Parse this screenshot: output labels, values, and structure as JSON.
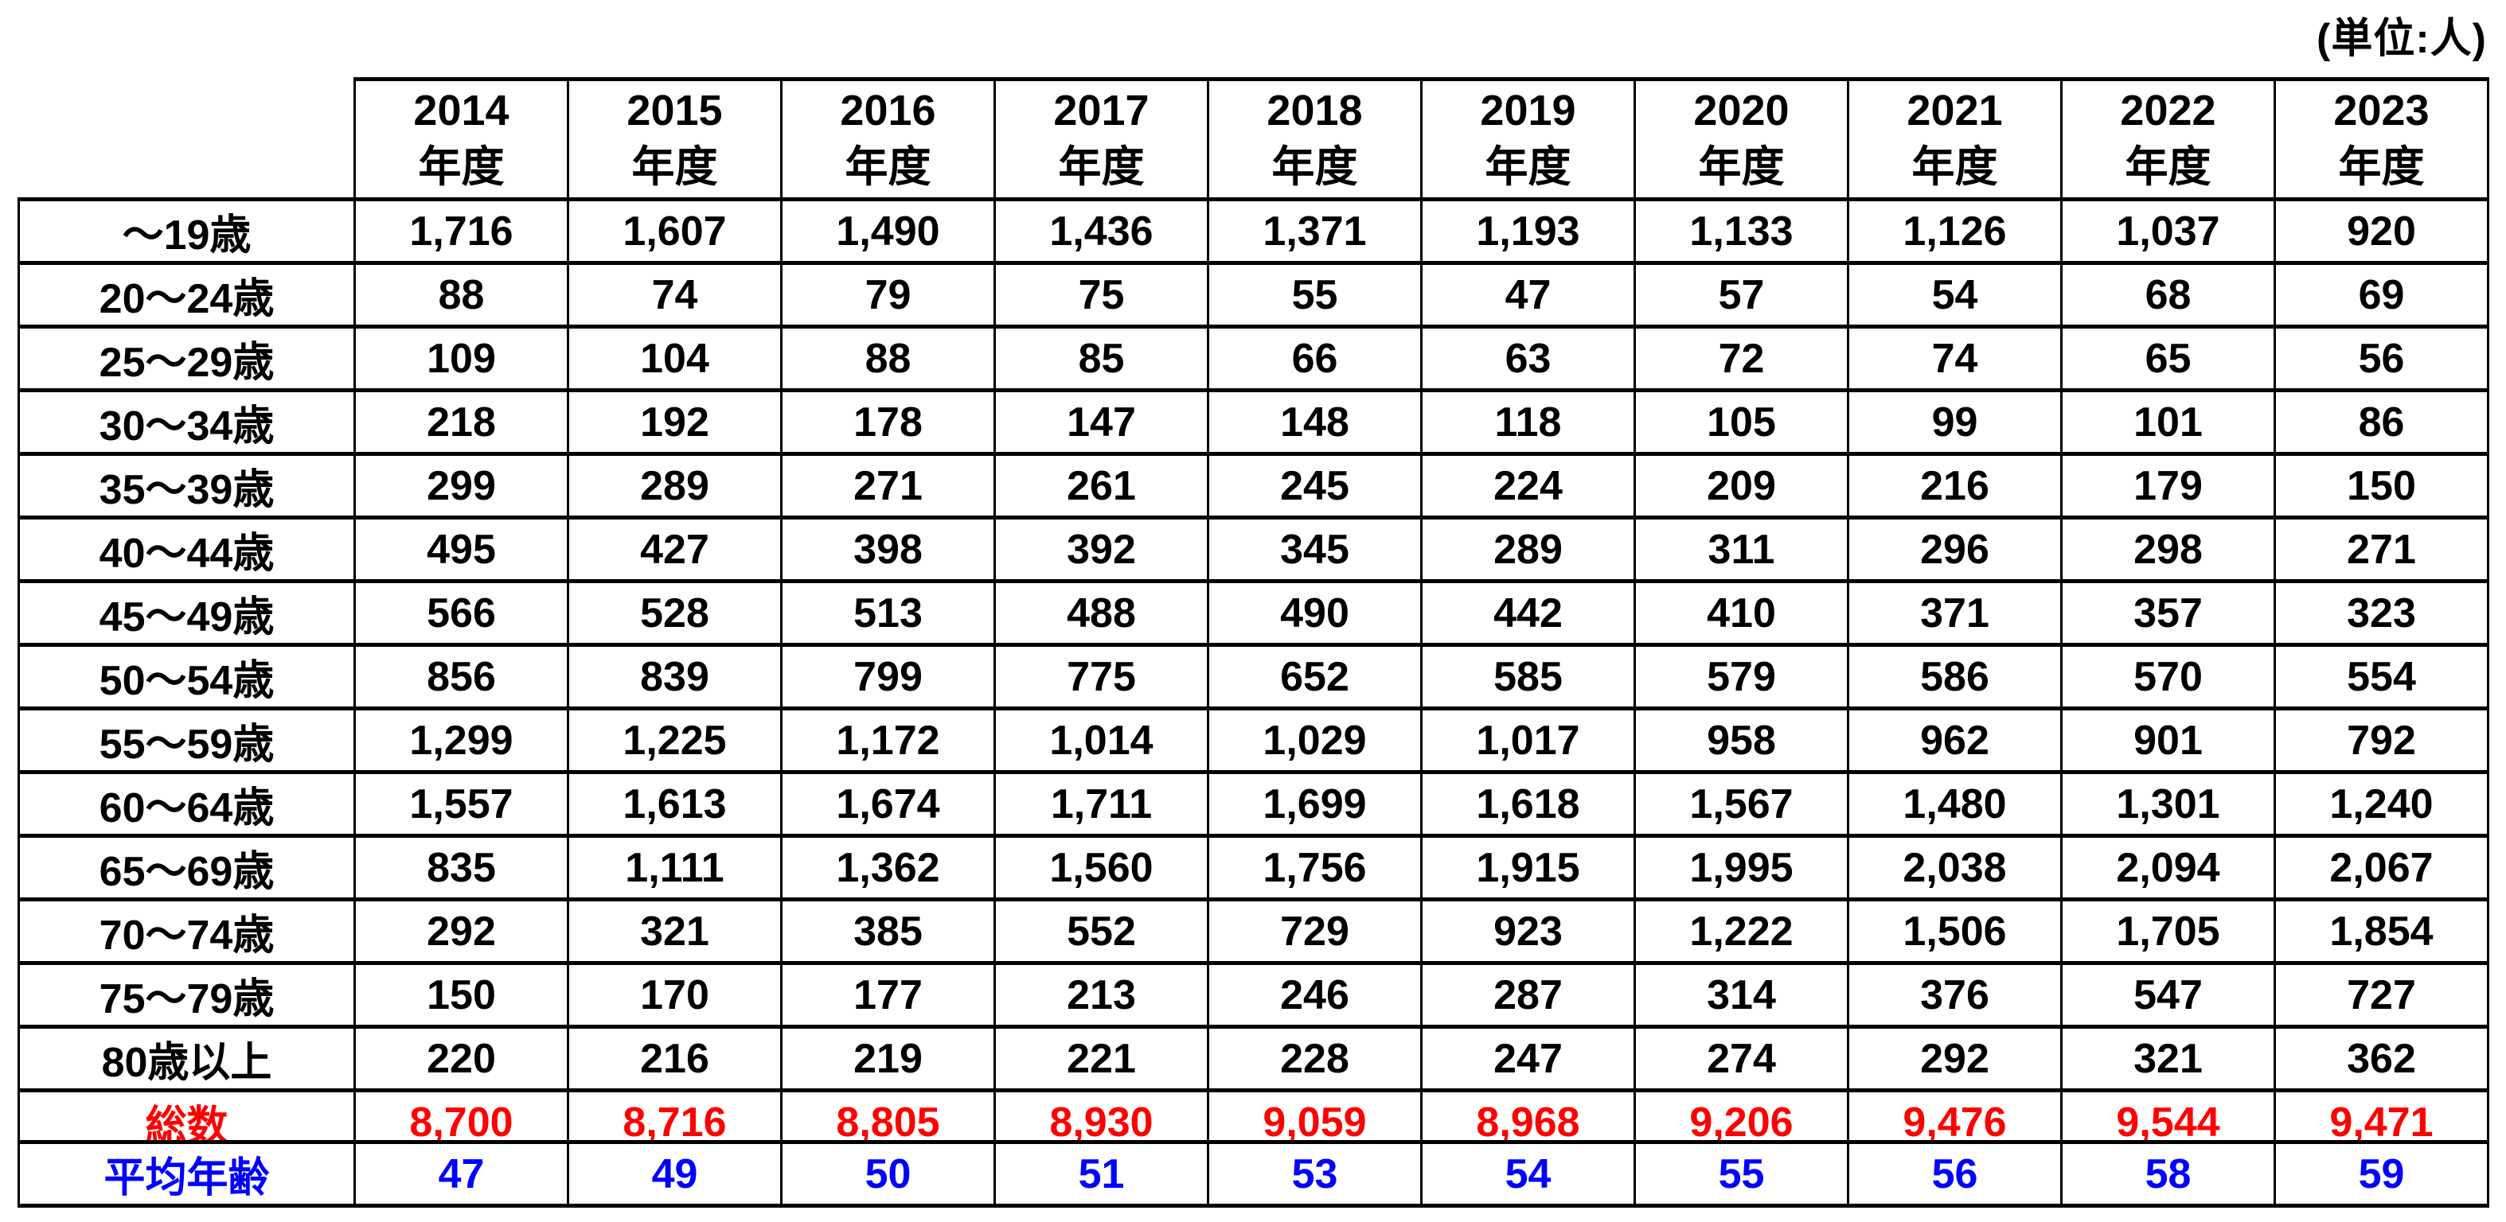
{
  "unit_label": "(単位:人)",
  "colors": {
    "total_text": "#FF0000",
    "average_text": "#0000FF",
    "border": "#000000",
    "background": "#FFFFFF"
  },
  "table": {
    "years": [
      "2014",
      "2015",
      "2016",
      "2017",
      "2018",
      "2019",
      "2020",
      "2021",
      "2022",
      "2023"
    ],
    "year_suffix": "年度",
    "rows": [
      {
        "label": "～19歳",
        "values": [
          "1,716",
          "1,607",
          "1,490",
          "1,436",
          "1,371",
          "1,193",
          "1,133",
          "1,126",
          "1,037",
          "920"
        ]
      },
      {
        "label": "20～24歳",
        "values": [
          "88",
          "74",
          "79",
          "75",
          "55",
          "47",
          "57",
          "54",
          "68",
          "69"
        ]
      },
      {
        "label": "25～29歳",
        "values": [
          "109",
          "104",
          "88",
          "85",
          "66",
          "63",
          "72",
          "74",
          "65",
          "56"
        ]
      },
      {
        "label": "30～34歳",
        "values": [
          "218",
          "192",
          "178",
          "147",
          "148",
          "118",
          "105",
          "99",
          "101",
          "86"
        ]
      },
      {
        "label": "35～39歳",
        "values": [
          "299",
          "289",
          "271",
          "261",
          "245",
          "224",
          "209",
          "216",
          "179",
          "150"
        ]
      },
      {
        "label": "40～44歳",
        "values": [
          "495",
          "427",
          "398",
          "392",
          "345",
          "289",
          "311",
          "296",
          "298",
          "271"
        ]
      },
      {
        "label": "45～49歳",
        "values": [
          "566",
          "528",
          "513",
          "488",
          "490",
          "442",
          "410",
          "371",
          "357",
          "323"
        ]
      },
      {
        "label": "50～54歳",
        "values": [
          "856",
          "839",
          "799",
          "775",
          "652",
          "585",
          "579",
          "586",
          "570",
          "554"
        ]
      },
      {
        "label": "55～59歳",
        "values": [
          "1,299",
          "1,225",
          "1,172",
          "1,014",
          "1,029",
          "1,017",
          "958",
          "962",
          "901",
          "792"
        ]
      },
      {
        "label": "60～64歳",
        "values": [
          "1,557",
          "1,613",
          "1,674",
          "1,711",
          "1,699",
          "1,618",
          "1,567",
          "1,480",
          "1,301",
          "1,240"
        ]
      },
      {
        "label": "65～69歳",
        "values": [
          "835",
          "1,111",
          "1,362",
          "1,560",
          "1,756",
          "1,915",
          "1,995",
          "2,038",
          "2,094",
          "2,067"
        ]
      },
      {
        "label": "70～74歳",
        "values": [
          "292",
          "321",
          "385",
          "552",
          "729",
          "923",
          "1,222",
          "1,506",
          "1,705",
          "1,854"
        ]
      },
      {
        "label": "75～79歳",
        "values": [
          "150",
          "170",
          "177",
          "213",
          "246",
          "287",
          "314",
          "376",
          "547",
          "727"
        ]
      },
      {
        "label": "80歳以上",
        "values": [
          "220",
          "216",
          "219",
          "221",
          "228",
          "247",
          "274",
          "292",
          "321",
          "362"
        ]
      }
    ],
    "total_row": {
      "label": "総数",
      "values": [
        "8,700",
        "8,716",
        "8,805",
        "8,930",
        "9,059",
        "8,968",
        "9,206",
        "9,476",
        "9,544",
        "9,471"
      ]
    },
    "average_row": {
      "label": "平均年齢",
      "values": [
        "47",
        "49",
        "50",
        "51",
        "53",
        "54",
        "55",
        "56",
        "58",
        "59"
      ]
    }
  }
}
